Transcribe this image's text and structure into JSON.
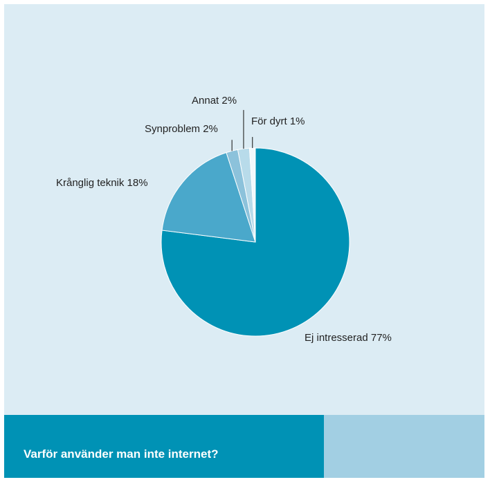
{
  "chart_data": {
    "type": "pie",
    "title": "Varför använder man inte internet?",
    "slices": [
      {
        "label": "Ej intresserad 77%",
        "value": 77,
        "color": "#0092b5"
      },
      {
        "label": "Krånglig teknik 18%",
        "value": 18,
        "color": "#4aa8cb"
      },
      {
        "label": "Synproblem 2%",
        "value": 2,
        "color": "#8cc2db"
      },
      {
        "label": "Annat 2%",
        "value": 2,
        "color": "#b8dbea"
      },
      {
        "label": "För dyrt 1%",
        "value": 1,
        "color": "#f2f8fb"
      }
    ]
  },
  "footer": {
    "title": "Varför använder man inte internet?"
  }
}
